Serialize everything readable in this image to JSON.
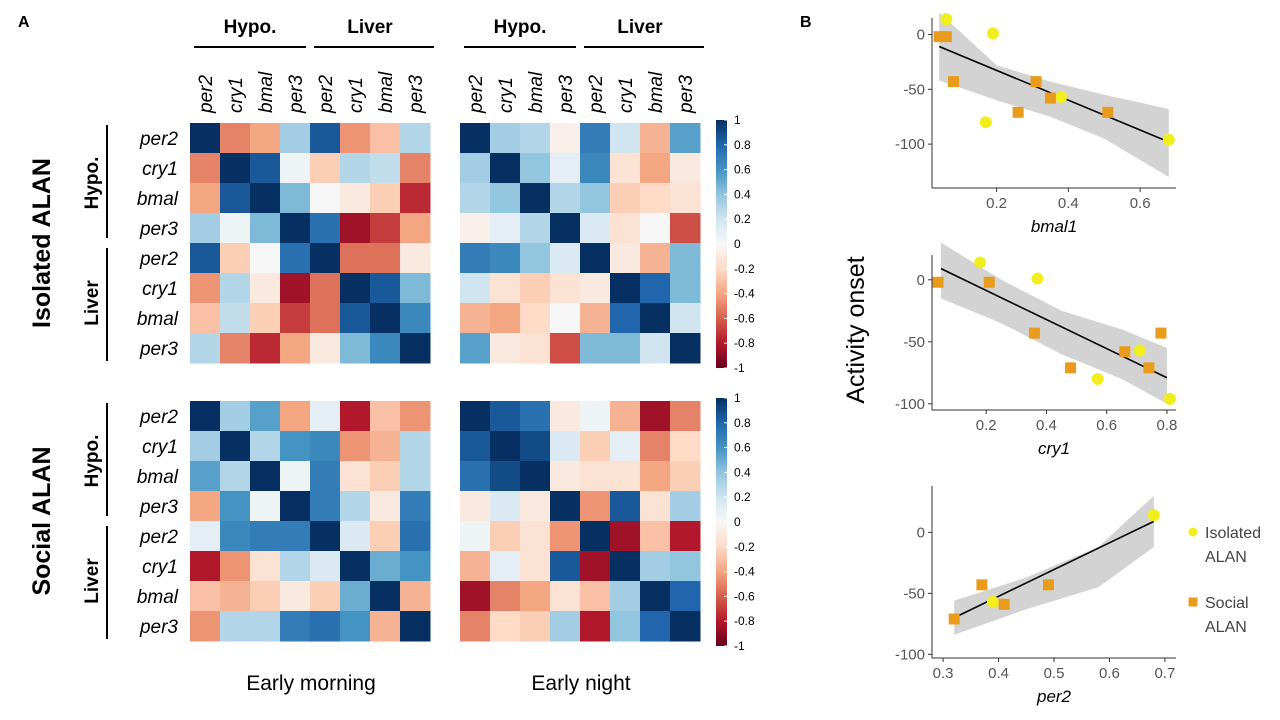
{
  "panels": {
    "a": "A",
    "b": "B"
  },
  "colors": {
    "isolated": "#f2ee1e",
    "social": "#e99b1c",
    "ci_band": "#d3d3d3",
    "fit_line": "#000000",
    "neg": "#67001f",
    "pos": "#053061"
  },
  "chart_data": [
    {
      "type": "heatmap",
      "panel": "A",
      "group_headers": [
        "Hypo.",
        "Liver"
      ],
      "genes": [
        "per2",
        "cry1",
        "bmal",
        "per3",
        "per2",
        "cry1",
        "bmal",
        "per3"
      ],
      "row_groups": [
        {
          "label": "Isolated ALAN",
          "tissue_labels": [
            "Hypo.",
            "Liver"
          ]
        },
        {
          "label": "Social ALAN",
          "tissue_labels": [
            "Hypo.",
            "Liver"
          ]
        }
      ],
      "column_panels": [
        "Early morning",
        "Early night"
      ],
      "colorbar": {
        "ticks": [
          "1",
          "0.8",
          "0.6",
          "0.4",
          "0.2",
          "0",
          "-0.2",
          "-0.4",
          "-0.6",
          "-0.8",
          "-1"
        ],
        "range": [
          -1,
          1
        ]
      },
      "matrices": [
        [
          [
            1,
            -0.5,
            -0.4,
            0.35,
            0.85,
            -0.45,
            -0.3,
            0.3
          ],
          [
            -0.5,
            1,
            0.85,
            0.05,
            -0.25,
            0.3,
            0.25,
            -0.5
          ],
          [
            -0.4,
            0.85,
            1,
            0.45,
            0,
            -0.1,
            -0.25,
            -0.75
          ],
          [
            0.35,
            0.05,
            0.45,
            1,
            0.75,
            -0.85,
            -0.7,
            -0.4
          ],
          [
            0.85,
            -0.25,
            0,
            0.75,
            1,
            -0.55,
            -0.55,
            -0.1
          ],
          [
            -0.45,
            0.3,
            -0.1,
            -0.85,
            -0.55,
            1,
            0.85,
            0.45
          ],
          [
            -0.3,
            0.25,
            -0.25,
            -0.7,
            -0.55,
            0.85,
            1,
            0.65
          ],
          [
            0.3,
            -0.5,
            -0.75,
            -0.4,
            -0.1,
            0.45,
            0.65,
            1
          ]
        ],
        [
          [
            1,
            0.35,
            0.3,
            -0.05,
            0.7,
            0.2,
            -0.35,
            0.55
          ],
          [
            0.35,
            1,
            0.4,
            0.1,
            0.65,
            -0.15,
            -0.4,
            -0.1
          ],
          [
            0.3,
            0.4,
            1,
            0.3,
            0.4,
            -0.25,
            -0.2,
            -0.15
          ],
          [
            -0.05,
            0.1,
            0.3,
            1,
            0.15,
            -0.15,
            0,
            -0.65
          ],
          [
            0.7,
            0.65,
            0.4,
            0.15,
            1,
            -0.1,
            -0.35,
            0.45
          ],
          [
            0.2,
            -0.15,
            -0.25,
            -0.15,
            -0.1,
            1,
            0.8,
            0.45
          ],
          [
            -0.35,
            -0.4,
            -0.2,
            0,
            -0.35,
            0.8,
            1,
            0.2
          ],
          [
            0.55,
            -0.1,
            -0.15,
            -0.65,
            0.45,
            0.45,
            0.2,
            1
          ]
        ],
        [
          [
            1,
            0.35,
            0.55,
            -0.4,
            0.1,
            -0.8,
            -0.3,
            -0.45
          ],
          [
            0.35,
            1,
            0.3,
            0.6,
            0.65,
            -0.45,
            -0.35,
            0.3
          ],
          [
            0.55,
            0.3,
            1,
            0.05,
            0.7,
            -0.15,
            -0.25,
            0.3
          ],
          [
            -0.4,
            0.6,
            0.05,
            1,
            0.7,
            0.3,
            -0.1,
            0.7
          ],
          [
            0.1,
            0.65,
            0.7,
            0.7,
            1,
            0.15,
            -0.25,
            0.75
          ],
          [
            -0.8,
            -0.45,
            -0.15,
            0.3,
            0.15,
            1,
            0.5,
            0.6
          ],
          [
            -0.3,
            -0.35,
            -0.25,
            -0.1,
            -0.25,
            0.5,
            1,
            -0.35
          ],
          [
            -0.45,
            0.3,
            0.3,
            0.7,
            0.75,
            0.6,
            -0.35,
            1
          ]
        ],
        [
          [
            1,
            0.85,
            0.75,
            -0.1,
            0.05,
            -0.35,
            -0.85,
            -0.5
          ],
          [
            0.85,
            1,
            0.9,
            0.15,
            -0.25,
            0.1,
            -0.5,
            -0.2
          ],
          [
            0.75,
            0.9,
            1,
            -0.1,
            -0.15,
            -0.15,
            -0.4,
            -0.25
          ],
          [
            -0.1,
            0.15,
            -0.1,
            1,
            -0.45,
            0.85,
            -0.15,
            0.35
          ],
          [
            0.05,
            -0.25,
            -0.15,
            -0.45,
            1,
            -0.85,
            -0.3,
            -0.8
          ],
          [
            -0.35,
            0.1,
            -0.15,
            0.85,
            -0.85,
            1,
            0.35,
            0.4
          ],
          [
            -0.85,
            -0.5,
            -0.4,
            -0.15,
            -0.3,
            0.35,
            1,
            0.8
          ],
          [
            -0.5,
            -0.2,
            -0.25,
            0.35,
            -0.8,
            0.4,
            0.8,
            1
          ]
        ]
      ]
    },
    {
      "type": "scatter",
      "panel": "B",
      "ylabel": "Activity onset",
      "legend": [
        {
          "name": "Isolated ALAN",
          "lines": [
            "Isolated",
            "ALAN"
          ],
          "marker": "circle"
        },
        {
          "name": "Social ALAN",
          "lines": [
            "Social",
            "ALAN"
          ],
          "marker": "square"
        }
      ],
      "legend_placement": "right",
      "subplots": [
        {
          "xlabel": "bmal1",
          "xlim": [
            0.02,
            0.7
          ],
          "ylim": [
            -140,
            15
          ],
          "xticks": [
            0.2,
            0.4,
            0.6
          ],
          "xtick_labels": [
            "0.2",
            "0.4",
            "0.6"
          ],
          "yticks": [
            0,
            -50,
            -100
          ],
          "ytick_labels": [
            "0",
            "-50",
            "-100"
          ],
          "isolated": [
            [
              0.06,
              14
            ],
            [
              0.19,
              1
            ],
            [
              0.17,
              -80
            ],
            [
              0.38,
              -57
            ],
            [
              0.68,
              -96
            ]
          ],
          "social": [
            [
              0.04,
              -2
            ],
            [
              0.06,
              -2
            ],
            [
              0.08,
              -43
            ],
            [
              0.26,
              -71
            ],
            [
              0.31,
              -43
            ],
            [
              0.35,
              -58
            ],
            [
              0.51,
              -71
            ]
          ],
          "fit": [
            [
              0.04,
              -11
            ],
            [
              0.68,
              -98
            ]
          ],
          "ci": {
            "x": [
              0.04,
              0.2,
              0.35,
              0.5,
              0.68
            ],
            "upper": [
              20,
              -28,
              -43,
              -55,
              -68
            ],
            "lower": [
              -42,
              -60,
              -75,
              -95,
              -130
            ]
          }
        },
        {
          "xlabel": "cry1",
          "xlim": [
            0.02,
            0.83
          ],
          "ylim": [
            -105,
            20
          ],
          "xticks": [
            0.2,
            0.4,
            0.6,
            0.8
          ],
          "xtick_labels": [
            "0.2",
            "0.4",
            "0.6",
            "0.8"
          ],
          "yticks": [
            0,
            -50,
            -100
          ],
          "ytick_labels": [
            "0",
            "-50",
            "-100"
          ],
          "isolated": [
            [
              0.18,
              14
            ],
            [
              0.37,
              1
            ],
            [
              0.57,
              -80
            ],
            [
              0.71,
              -57
            ],
            [
              0.81,
              -96
            ]
          ],
          "social": [
            [
              0.04,
              -2
            ],
            [
              0.21,
              -2
            ],
            [
              0.36,
              -43
            ],
            [
              0.48,
              -71
            ],
            [
              0.66,
              -58
            ],
            [
              0.74,
              -71
            ],
            [
              0.78,
              -43
            ]
          ],
          "fit": [
            [
              0.05,
              9
            ],
            [
              0.8,
              -79
            ]
          ],
          "ci": {
            "x": [
              0.05,
              0.25,
              0.45,
              0.65,
              0.8
            ],
            "upper": [
              30,
              0,
              -25,
              -40,
              -55
            ],
            "lower": [
              -15,
              -35,
              -60,
              -80,
              -100
            ]
          }
        },
        {
          "xlabel": "per2",
          "xlim": [
            0.28,
            0.72
          ],
          "ylim": [
            -103,
            38
          ],
          "xticks": [
            0.3,
            0.4,
            0.5,
            0.6,
            0.7
          ],
          "xtick_labels": [
            "0.3",
            "0.4",
            "0.5",
            "0.6",
            "0.7"
          ],
          "yticks": [
            0,
            -50,
            -100
          ],
          "ytick_labels": [
            "0",
            "-50",
            "-100"
          ],
          "isolated": [
            [
              0.68,
              14
            ],
            [
              0.39,
              -57
            ]
          ],
          "social": [
            [
              0.32,
              -71
            ],
            [
              0.37,
              -43
            ],
            [
              0.41,
              -59
            ],
            [
              0.49,
              -43
            ]
          ],
          "fit": [
            [
              0.32,
              -70
            ],
            [
              0.68,
              9
            ]
          ],
          "ci": {
            "x": [
              0.32,
              0.45,
              0.58,
              0.68
            ],
            "upper": [
              -56,
              -37,
              -12,
              30
            ],
            "lower": [
              -84,
              -63,
              -45,
              -12
            ]
          }
        }
      ]
    }
  ]
}
